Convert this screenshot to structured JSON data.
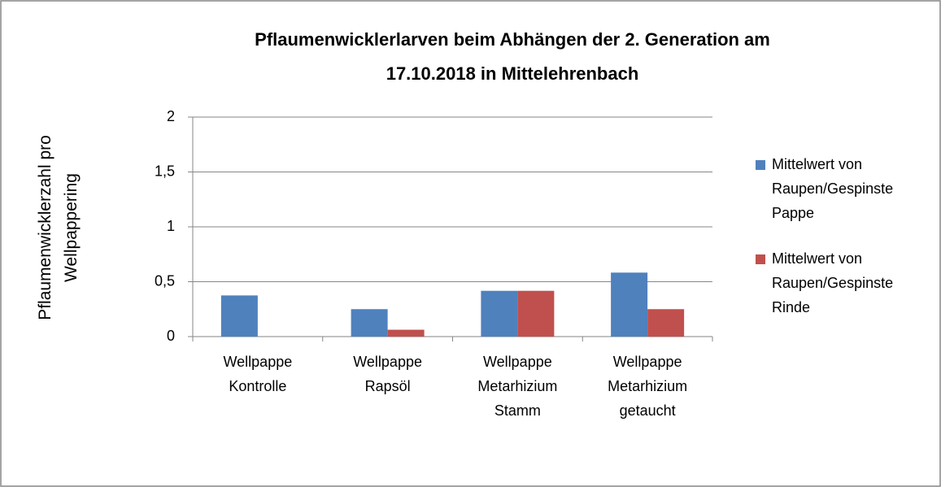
{
  "chart_data": {
    "type": "bar",
    "title": "Pflaumenwicklerlarven beim Abhängen der 2. Generation am\n17.10.2018 in Mittelehrenbach",
    "y_label": "Pflaumenwicklerzahl pro\nWellpappering",
    "categories": [
      "Wellpappe\nKontrolle",
      "Wellpappe\nRapsöl",
      "Wellpappe\nMetarhizium\nStamm",
      "Wellpappe\nMetarhizium\ngetaucht"
    ],
    "series": [
      {
        "name": "Mittelwert von\nRaupen/Gespinste\nPappe",
        "color": "#4f81bd",
        "values": [
          0.375,
          0.25,
          0.417,
          0.583
        ]
      },
      {
        "name": "Mittelwert von\nRaupen/Gespinste\nRinde",
        "color": "#c0504d",
        "values": [
          0,
          0.0625,
          0.417,
          0.25
        ]
      }
    ],
    "ylim": [
      0,
      2
    ],
    "yticks": [
      0,
      {
        "value": 0.5,
        "label": "0,5"
      },
      1,
      {
        "value": 1.5,
        "label": "1,5"
      },
      2
    ],
    "grid": true,
    "legend": "right"
  }
}
